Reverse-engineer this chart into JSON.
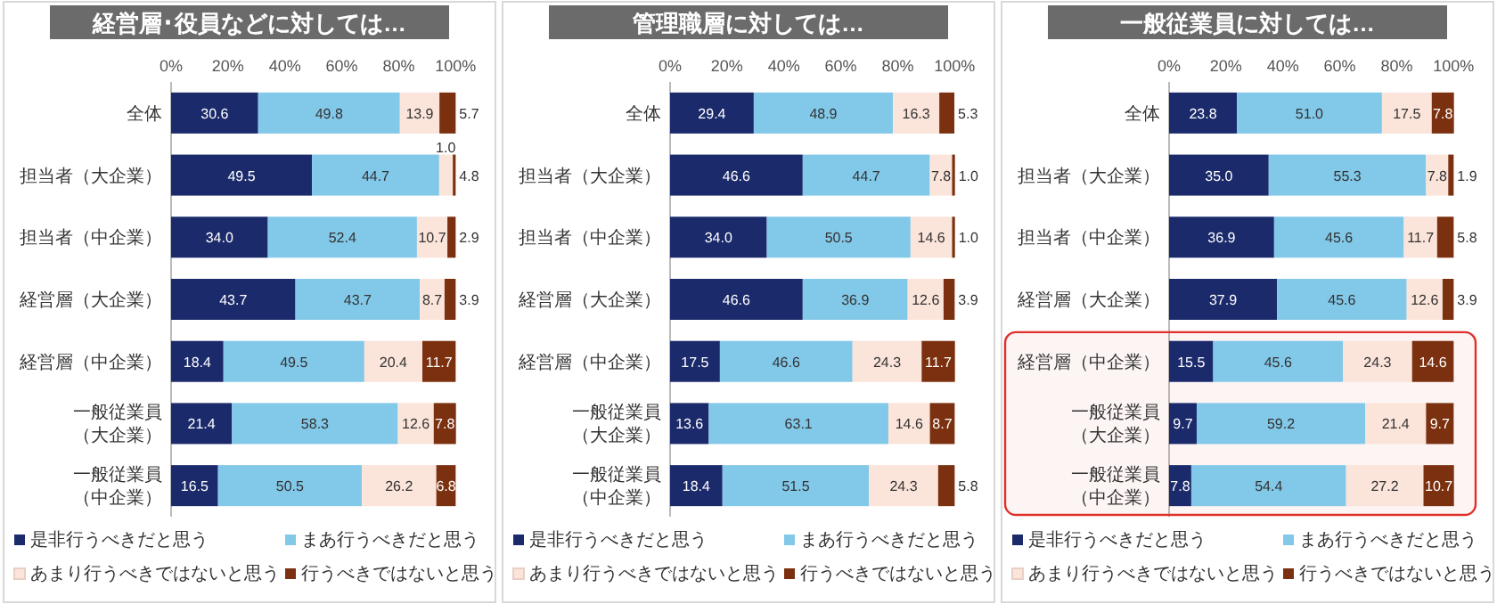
{
  "chart_data": [
    {
      "type": "bar",
      "orientation": "horizontal",
      "stacked": true,
      "title": "経営層･役員などに対しては…",
      "categories": [
        "全体",
        "担当者（大企業）",
        "担当者（中企業）",
        "経営層（大企業）",
        "経営層（中企業）",
        "一般従業員（大企業）",
        "一般従業員（中企業）"
      ],
      "xlim": [
        0,
        100.2
      ],
      "xticks": [
        {
          "value": 0,
          "label": "0%"
        },
        {
          "value": 20,
          "label": "20%"
        },
        {
          "value": 40,
          "label": "40%"
        },
        {
          "value": 60,
          "label": "60%"
        },
        {
          "value": 80,
          "label": "80%"
        },
        {
          "value": 100,
          "label": "100%"
        }
      ],
      "legend": "bottom",
      "grid": false,
      "series": [
        {
          "name": "是非行うべきだと思う",
          "color": "#1b2a6b",
          "values": [
            30.6,
            49.5,
            34.0,
            43.7,
            18.4,
            21.4,
            16.5
          ],
          "value_labels": [
            "30.6",
            "49.5",
            "34.0",
            "43.7",
            "18.4",
            "21.4",
            "16.5"
          ]
        },
        {
          "name": "まあ行うべきだと思う",
          "color": "#82c8e8",
          "values": [
            49.8,
            44.7,
            52.4,
            43.7,
            49.5,
            58.3,
            50.5
          ],
          "value_labels": [
            "49.8",
            "44.7",
            "52.4",
            "43.7",
            "49.5",
            "58.3",
            "50.5"
          ]
        },
        {
          "name": "あまり行うべきではないと思う",
          "color": "#fbe4da",
          "values": [
            13.9,
            4.8,
            10.7,
            8.7,
            20.4,
            12.6,
            26.2
          ],
          "value_labels": [
            "13.9",
            "4.8",
            "10.7",
            "8.7",
            "20.4",
            "12.6",
            "26.2"
          ]
        },
        {
          "name": "行うべきではないと思う",
          "color": "#7b300f",
          "values": [
            5.7,
            1.0,
            2.9,
            3.9,
            11.7,
            7.8,
            6.8
          ],
          "value_labels": [
            "5.7",
            "1.0",
            "2.9",
            "3.9",
            "11.7",
            "7.8",
            "6.8"
          ]
        }
      ]
    },
    {
      "type": "bar",
      "orientation": "horizontal",
      "stacked": true,
      "title": "管理職層に対しては…",
      "categories": [
        "全体",
        "担当者（大企業）",
        "担当者（中企業）",
        "経営層（大企業）",
        "経営層（中企業）",
        "一般従業員（大企業）",
        "一般従業員（中企業）"
      ],
      "xlim": [
        0,
        100.2
      ],
      "xticks": [
        {
          "value": 0,
          "label": "0%"
        },
        {
          "value": 20,
          "label": "20%"
        },
        {
          "value": 40,
          "label": "40%"
        },
        {
          "value": 60,
          "label": "60%"
        },
        {
          "value": 80,
          "label": "80%"
        },
        {
          "value": 100,
          "label": "100%"
        }
      ],
      "legend": "bottom",
      "grid": false,
      "series": [
        {
          "name": "是非行うべきだと思う",
          "color": "#1b2a6b",
          "values": [
            29.4,
            46.6,
            34.0,
            46.6,
            17.5,
            13.6,
            18.4
          ],
          "value_labels": [
            "29.4",
            "46.6",
            "34.0",
            "46.6",
            "17.5",
            "13.6",
            "18.4"
          ]
        },
        {
          "name": "まあ行うべきだと思う",
          "color": "#82c8e8",
          "values": [
            48.9,
            44.7,
            50.5,
            36.9,
            46.6,
            63.1,
            51.5
          ],
          "value_labels": [
            "48.9",
            "44.7",
            "50.5",
            "36.9",
            "46.6",
            "63.1",
            "51.5"
          ]
        },
        {
          "name": "あまり行うべきではないと思う",
          "color": "#fbe4da",
          "values": [
            16.3,
            7.8,
            14.6,
            12.6,
            24.3,
            14.6,
            24.3
          ],
          "value_labels": [
            "16.3",
            "7.8",
            "14.6",
            "12.6",
            "24.3",
            "14.6",
            "24.3"
          ]
        },
        {
          "name": "行うべきではないと思う",
          "color": "#7b300f",
          "values": [
            5.3,
            1.0,
            1.0,
            3.9,
            11.7,
            8.7,
            5.8
          ],
          "value_labels": [
            "5.3",
            "1.0",
            "1.0",
            "3.9",
            "11.7",
            "8.7",
            "5.8"
          ]
        }
      ]
    },
    {
      "type": "bar",
      "orientation": "horizontal",
      "stacked": true,
      "title": "一般従業員に対しては…",
      "categories": [
        "全体",
        "担当者（大企業）",
        "担当者（中企業）",
        "経営層（大企業）",
        "経営層（中企業）",
        "一般従業員（大企業）",
        "一般従業員（中企業）"
      ],
      "xlim": [
        0,
        100.2
      ],
      "xticks": [
        {
          "value": 0,
          "label": "0%"
        },
        {
          "value": 20,
          "label": "20%"
        },
        {
          "value": 40,
          "label": "40%"
        },
        {
          "value": 60,
          "label": "60%"
        },
        {
          "value": 80,
          "label": "80%"
        },
        {
          "value": 100,
          "label": "100%"
        }
      ],
      "legend": "bottom",
      "grid": false,
      "bands": [
        {
          "axis": "y",
          "from": "経営層（中企業）",
          "to": "一般従業員（中企業）",
          "color": "#e0302a"
        }
      ],
      "series": [
        {
          "name": "是非行うべきだと思う",
          "color": "#1b2a6b",
          "values": [
            23.8,
            35.0,
            36.9,
            37.9,
            15.5,
            9.7,
            7.8
          ],
          "value_labels": [
            "23.8",
            "35.0",
            "36.9",
            "37.9",
            "15.5",
            "9.7",
            "7.8"
          ]
        },
        {
          "name": "まあ行うべきだと思う",
          "color": "#82c8e8",
          "values": [
            51.0,
            55.3,
            45.6,
            45.6,
            45.6,
            59.2,
            54.4
          ],
          "value_labels": [
            "51.0",
            "55.3",
            "45.6",
            "45.6",
            "45.6",
            "59.2",
            "54.4"
          ]
        },
        {
          "name": "あまり行うべきではないと思う",
          "color": "#fbe4da",
          "values": [
            17.5,
            7.8,
            11.7,
            12.6,
            24.3,
            21.4,
            27.2
          ],
          "value_labels": [
            "17.5",
            "7.8",
            "11.7",
            "12.6",
            "24.3",
            "21.4",
            "27.2"
          ]
        },
        {
          "name": "行うべきではないと思う",
          "color": "#7b300f",
          "values": [
            7.8,
            1.9,
            5.8,
            3.9,
            14.6,
            9.7,
            10.7
          ],
          "value_labels": [
            "7.8",
            "1.9",
            "5.8",
            "3.9",
            "14.6",
            "9.7",
            "10.7"
          ]
        }
      ]
    }
  ]
}
